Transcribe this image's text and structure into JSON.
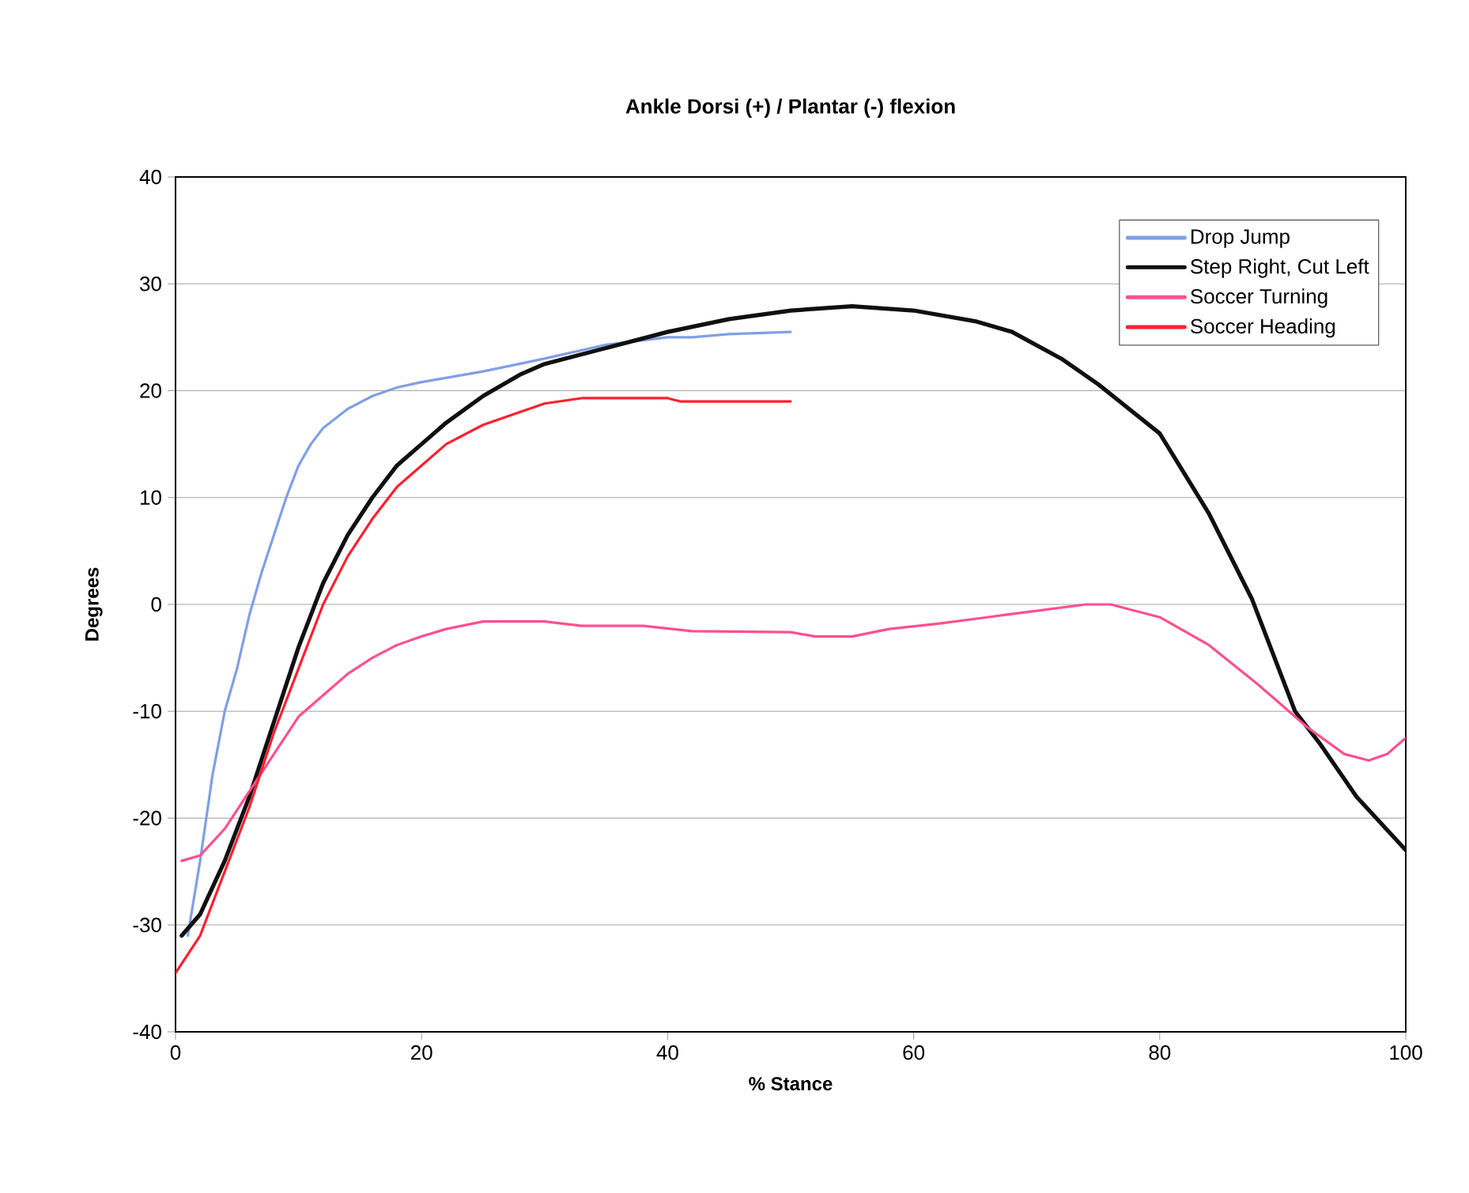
{
  "chart_data": {
    "type": "line",
    "title": "Ankle Dorsi (+) / Plantar (-) flexion",
    "xlabel": "% Stance",
    "ylabel": "Degrees",
    "xlim": [
      0,
      100
    ],
    "xticks": [
      0,
      20,
      40,
      60,
      80,
      100
    ],
    "ylim": [
      -40,
      40
    ],
    "yticks": [
      -40,
      -30,
      -20,
      -10,
      0,
      10,
      20,
      30,
      40
    ],
    "grid": "y",
    "legend": "top right",
    "series": [
      {
        "name": "Drop Jump",
        "color": "#7f9fe6",
        "x": [
          1,
          2,
          3,
          4,
          5,
          6,
          7,
          8,
          9,
          10,
          11,
          12,
          14,
          16,
          18,
          20,
          25,
          30,
          35,
          40,
          42,
          45,
          50
        ],
        "values": [
          -31,
          -24,
          -16,
          -10,
          -6,
          -1,
          3,
          6.5,
          10,
          13,
          15,
          16.5,
          18.3,
          19.5,
          20.3,
          20.8,
          21.8,
          23,
          24.3,
          25,
          25,
          25.3,
          25.5
        ]
      },
      {
        "name": "Step Right, Cut Left",
        "color": "#101010",
        "x": [
          0.5,
          2,
          4,
          6,
          8,
          10,
          12,
          14,
          16,
          18,
          20,
          22,
          25,
          28,
          30,
          35,
          40,
          45,
          50,
          55,
          60,
          65,
          68,
          72,
          75,
          80,
          84,
          87.5,
          91,
          93,
          96,
          98,
          100
        ],
        "values": [
          -31,
          -29,
          -24,
          -18,
          -11,
          -4,
          2,
          6.5,
          10,
          13,
          15,
          17,
          19.5,
          21.5,
          22.5,
          24,
          25.5,
          26.7,
          27.5,
          27.9,
          27.5,
          26.5,
          25.5,
          23,
          20.6,
          16,
          8.5,
          0.5,
          -10,
          -13,
          -18,
          -20.5,
          -23
        ]
      },
      {
        "name": "Soccer Turning",
        "color": "#ff4f8f",
        "x": [
          0.5,
          2,
          4,
          6,
          8,
          10,
          12,
          14,
          16,
          18,
          20,
          22,
          25,
          30,
          33,
          38,
          42,
          50,
          52,
          55,
          58,
          62,
          66,
          70,
          74,
          76,
          80,
          84,
          88,
          92,
          95,
          97,
          98.5,
          100
        ],
        "values": [
          -24,
          -23.5,
          -21,
          -17.5,
          -14,
          -10.5,
          -8.5,
          -6.5,
          -5,
          -3.8,
          -3,
          -2.3,
          -1.6,
          -1.6,
          -2,
          -2,
          -2.5,
          -2.6,
          -3,
          -3,
          -2.3,
          -1.8,
          -1.2,
          -0.6,
          0,
          0,
          -1.2,
          -3.8,
          -7.5,
          -11.5,
          -14,
          -14.6,
          -14,
          -12.5
        ]
      },
      {
        "name": "Soccer Heading",
        "color": "#ff1f2f",
        "x": [
          0,
          2,
          4,
          6,
          8,
          10,
          12,
          14,
          16,
          18,
          20,
          22,
          25,
          28,
          30,
          33,
          40,
          41,
          50
        ],
        "values": [
          -34.5,
          -31,
          -25,
          -19,
          -12,
          -6,
          0,
          4.5,
          8,
          11,
          13,
          15,
          16.8,
          18,
          18.8,
          19.3,
          19.3,
          19,
          19
        ]
      }
    ]
  }
}
